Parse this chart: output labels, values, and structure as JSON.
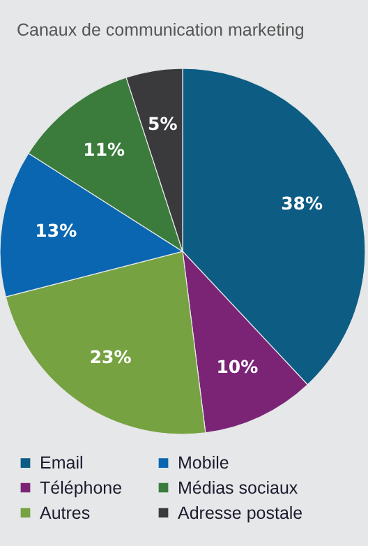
{
  "chart_data": {
    "type": "pie",
    "title": "Canaux de communication marketing",
    "categories": [
      "Email",
      "Téléphone",
      "Autres",
      "Mobile",
      "Médias sociaux",
      "Adresse postale"
    ],
    "values": [
      38,
      10,
      23,
      13,
      11,
      5
    ],
    "colors": [
      "#0d5c84",
      "#7b2476",
      "#76a241",
      "#0a66b0",
      "#3b7c3c",
      "#3a3a3c"
    ],
    "value_labels": [
      "38%",
      "10%",
      "23%",
      "13%",
      "11%",
      "5%"
    ],
    "legend": "bottom"
  }
}
